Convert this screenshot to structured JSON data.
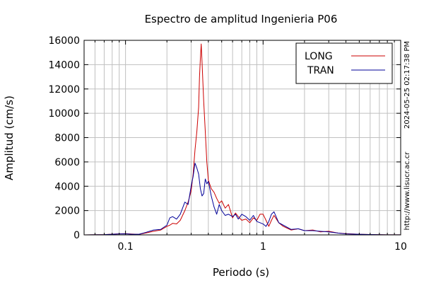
{
  "chart_data": {
    "type": "line",
    "title": "Espectro de amplitud Ingenieria P06",
    "xlabel": "Periodo (s)",
    "ylabel": "Amplitud (cm/s)",
    "x_scale": "log",
    "xlim": [
      0.05,
      10
    ],
    "ylim": [
      0,
      16000
    ],
    "x_ticks": [
      {
        "value": 0.1,
        "label": "0.1"
      },
      {
        "value": 1,
        "label": "1"
      },
      {
        "value": 10,
        "label": "10"
      }
    ],
    "y_ticks": [
      {
        "value": 0,
        "label": "0"
      },
      {
        "value": 2000,
        "label": "2000"
      },
      {
        "value": 4000,
        "label": "4000"
      },
      {
        "value": 6000,
        "label": "6000"
      },
      {
        "value": 8000,
        "label": "8000"
      },
      {
        "value": 10000,
        "label": "10000"
      },
      {
        "value": 12000,
        "label": "12000"
      },
      {
        "value": 14000,
        "label": "14000"
      },
      {
        "value": 16000,
        "label": "16000"
      }
    ],
    "grid": true,
    "legend_position": "top-right",
    "timestamp": "2024-05-25 02:17:38 PM",
    "source_url": "http://www.lisucr.ac.cr",
    "series": [
      {
        "name": "LONG",
        "color": "#cc0000",
        "points": [
          [
            0.05,
            0
          ],
          [
            0.07,
            20
          ],
          [
            0.08,
            60
          ],
          [
            0.09,
            90
          ],
          [
            0.1,
            100
          ],
          [
            0.11,
            70
          ],
          [
            0.125,
            40
          ],
          [
            0.14,
            150
          ],
          [
            0.16,
            300
          ],
          [
            0.18,
            400
          ],
          [
            0.2,
            700
          ],
          [
            0.21,
            800
          ],
          [
            0.22,
            950
          ],
          [
            0.235,
            900
          ],
          [
            0.25,
            1200
          ],
          [
            0.27,
            2000
          ],
          [
            0.285,
            2700
          ],
          [
            0.3,
            3600
          ],
          [
            0.31,
            5000
          ],
          [
            0.32,
            7000
          ],
          [
            0.33,
            8500
          ],
          [
            0.34,
            10500
          ],
          [
            0.345,
            13000
          ],
          [
            0.35,
            14500
          ],
          [
            0.355,
            15700
          ],
          [
            0.36,
            14200
          ],
          [
            0.37,
            11000
          ],
          [
            0.38,
            8500
          ],
          [
            0.39,
            6000
          ],
          [
            0.4,
            4500
          ],
          [
            0.42,
            3800
          ],
          [
            0.44,
            3500
          ],
          [
            0.46,
            3000
          ],
          [
            0.48,
            2600
          ],
          [
            0.5,
            2800
          ],
          [
            0.53,
            2200
          ],
          [
            0.56,
            2500
          ],
          [
            0.6,
            1400
          ],
          [
            0.63,
            1800
          ],
          [
            0.66,
            1500
          ],
          [
            0.7,
            1200
          ],
          [
            0.75,
            1300
          ],
          [
            0.8,
            1000
          ],
          [
            0.85,
            1400
          ],
          [
            0.9,
            1200
          ],
          [
            0.95,
            1700
          ],
          [
            1.0,
            1700
          ],
          [
            1.05,
            1200
          ],
          [
            1.1,
            700
          ],
          [
            1.15,
            1200
          ],
          [
            1.2,
            1600
          ],
          [
            1.3,
            1000
          ],
          [
            1.4,
            700
          ],
          [
            1.6,
            400
          ],
          [
            1.8,
            500
          ],
          [
            2.0,
            350
          ],
          [
            2.3,
            400
          ],
          [
            2.6,
            250
          ],
          [
            3.0,
            300
          ],
          [
            3.5,
            150
          ],
          [
            4.0,
            100
          ],
          [
            5.0,
            50
          ],
          [
            6.0,
            30
          ],
          [
            8.0,
            10
          ],
          [
            10.0,
            5
          ]
        ]
      },
      {
        "name": "TRAN",
        "color": "#000099",
        "points": [
          [
            0.05,
            0
          ],
          [
            0.07,
            20
          ],
          [
            0.08,
            50
          ],
          [
            0.09,
            80
          ],
          [
            0.1,
            90
          ],
          [
            0.11,
            60
          ],
          [
            0.125,
            50
          ],
          [
            0.14,
            200
          ],
          [
            0.16,
            400
          ],
          [
            0.18,
            450
          ],
          [
            0.2,
            800
          ],
          [
            0.21,
            1400
          ],
          [
            0.22,
            1500
          ],
          [
            0.235,
            1300
          ],
          [
            0.25,
            1700
          ],
          [
            0.27,
            2700
          ],
          [
            0.285,
            2500
          ],
          [
            0.3,
            4000
          ],
          [
            0.31,
            4800
          ],
          [
            0.32,
            5900
          ],
          [
            0.33,
            5500
          ],
          [
            0.34,
            5000
          ],
          [
            0.35,
            3800
          ],
          [
            0.36,
            3200
          ],
          [
            0.37,
            3400
          ],
          [
            0.38,
            4600
          ],
          [
            0.39,
            4200
          ],
          [
            0.4,
            4400
          ],
          [
            0.42,
            3200
          ],
          [
            0.44,
            2300
          ],
          [
            0.46,
            1700
          ],
          [
            0.48,
            2500
          ],
          [
            0.5,
            2000
          ],
          [
            0.53,
            1600
          ],
          [
            0.56,
            1700
          ],
          [
            0.6,
            1500
          ],
          [
            0.63,
            1700
          ],
          [
            0.66,
            1300
          ],
          [
            0.7,
            1700
          ],
          [
            0.75,
            1500
          ],
          [
            0.8,
            1200
          ],
          [
            0.85,
            1600
          ],
          [
            0.9,
            1100
          ],
          [
            0.95,
            1000
          ],
          [
            1.0,
            900
          ],
          [
            1.05,
            700
          ],
          [
            1.1,
            1100
          ],
          [
            1.15,
            1700
          ],
          [
            1.2,
            1900
          ],
          [
            1.3,
            1000
          ],
          [
            1.4,
            800
          ],
          [
            1.6,
            450
          ],
          [
            1.8,
            500
          ],
          [
            2.0,
            350
          ],
          [
            2.3,
            350
          ],
          [
            2.6,
            300
          ],
          [
            3.0,
            250
          ],
          [
            3.5,
            150
          ],
          [
            4.0,
            80
          ],
          [
            5.0,
            50
          ],
          [
            6.0,
            30
          ],
          [
            8.0,
            10
          ],
          [
            10.0,
            5
          ]
        ]
      }
    ]
  }
}
